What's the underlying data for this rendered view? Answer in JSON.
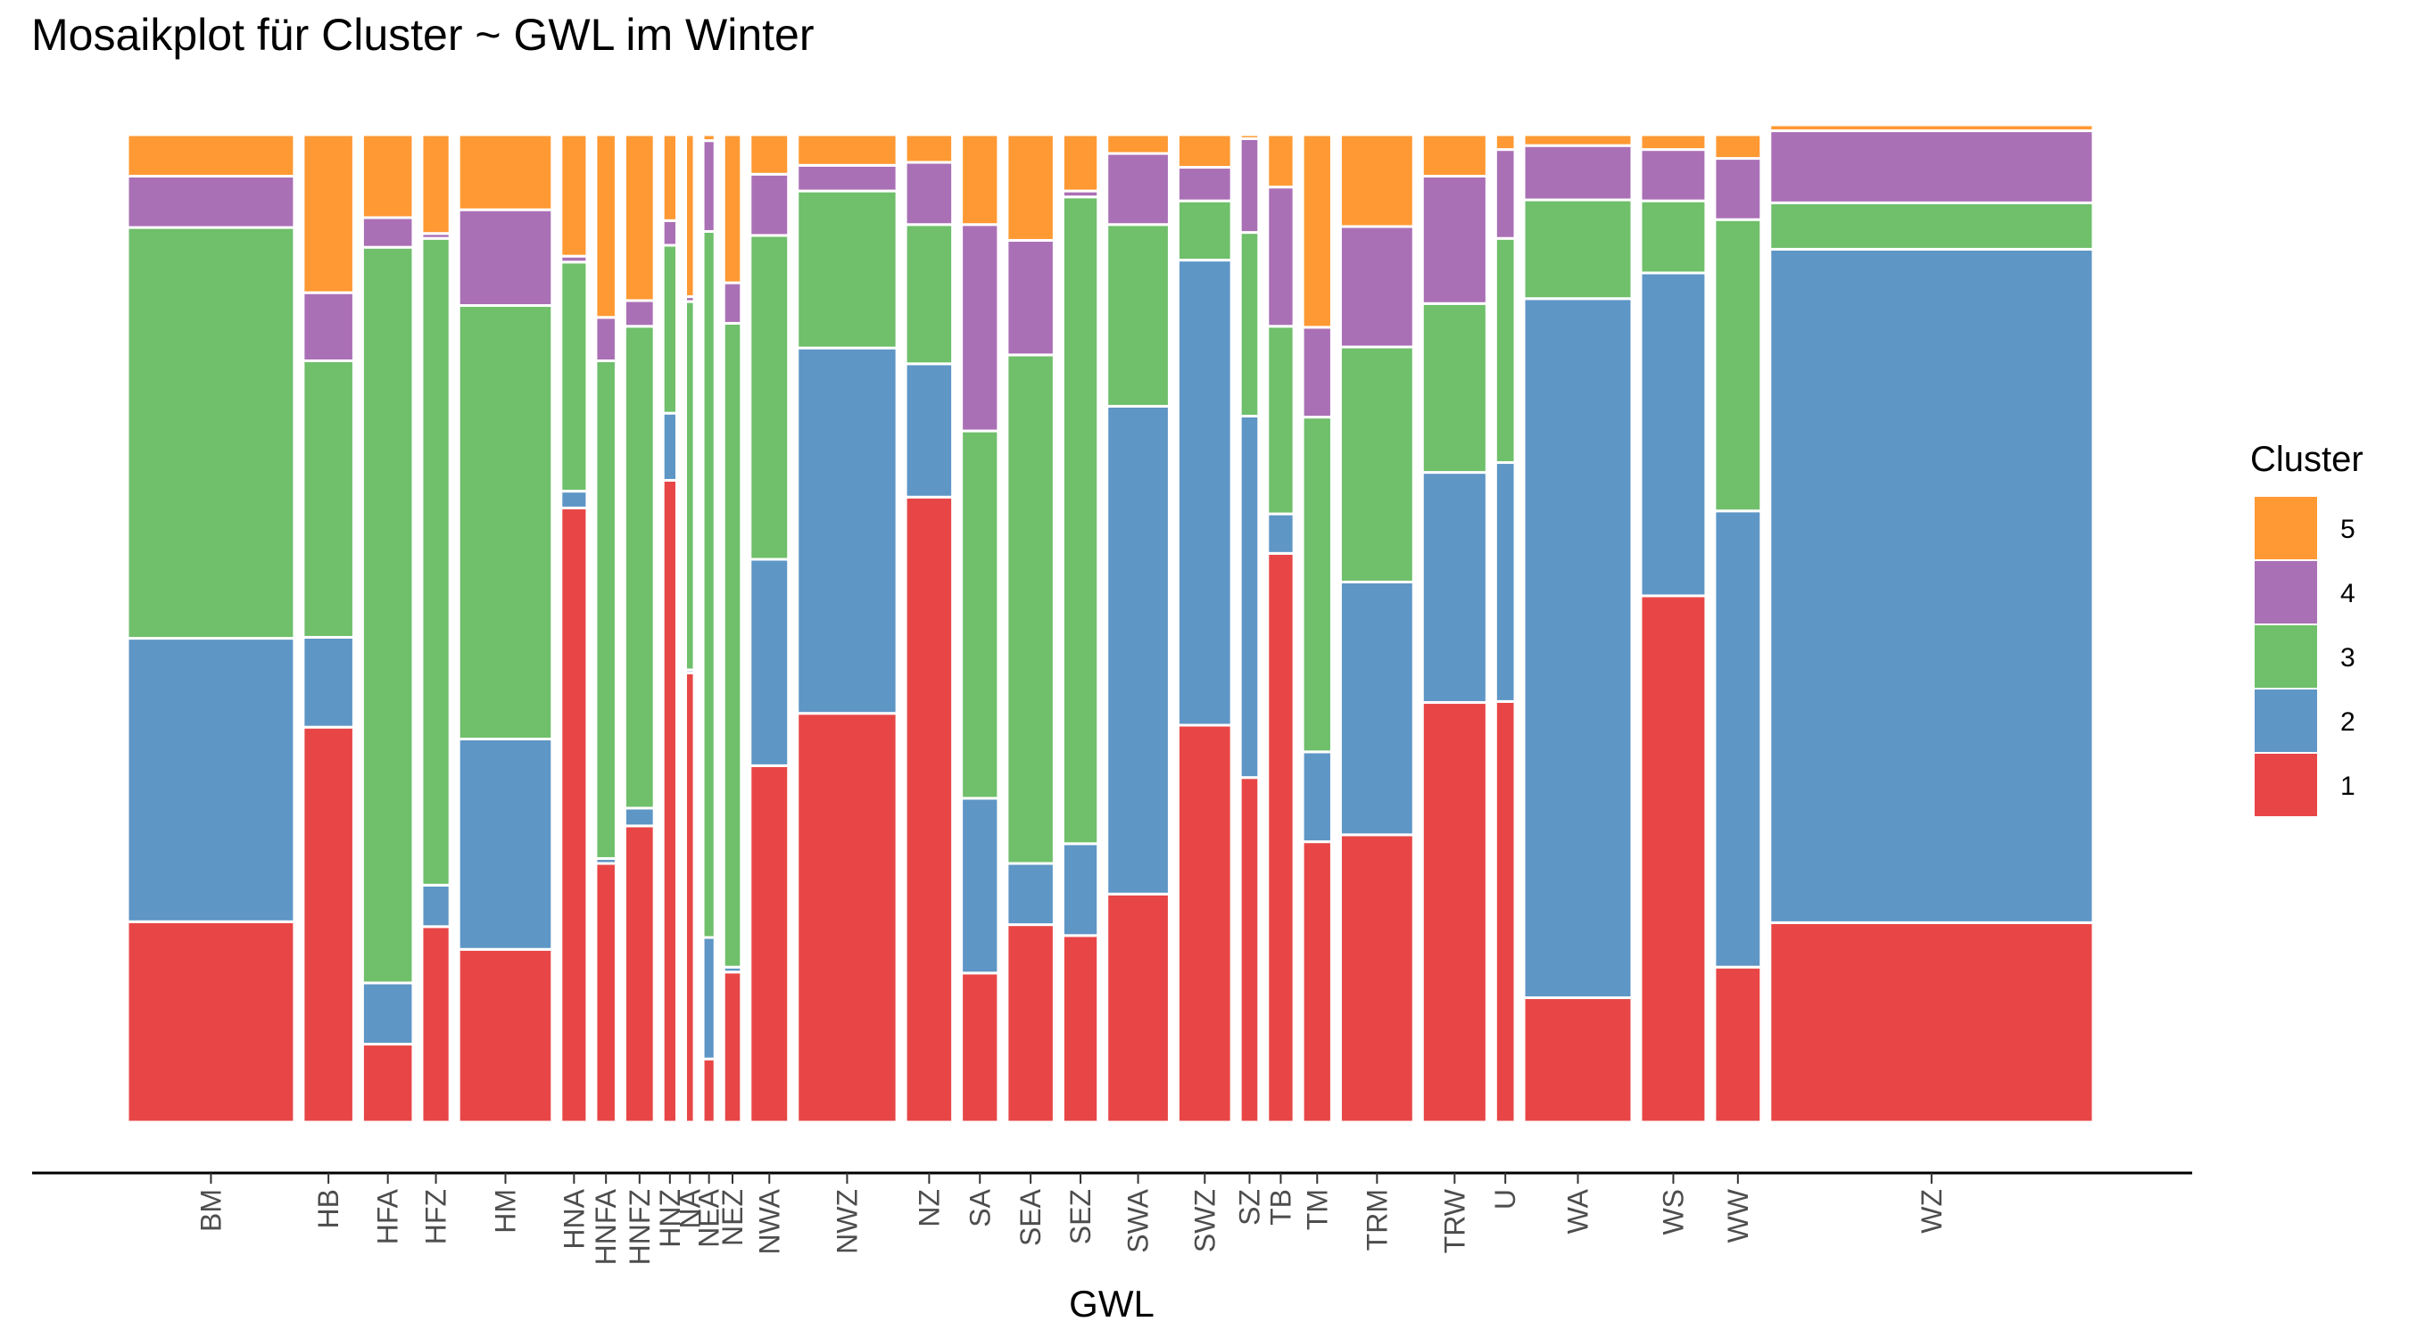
{
  "chart_data": {
    "type": "mosaic",
    "title": "Mosaikplot für Cluster ~ GWL im Winter",
    "xlabel": "GWL",
    "ylabel": "",
    "legend": {
      "title": "Cluster",
      "placement": "right",
      "entries": [
        {
          "name": "5",
          "color": "#FF9933"
        },
        {
          "name": "4",
          "color": "#AA70B6"
        },
        {
          "name": "3",
          "color": "#6FBF6B"
        },
        {
          "name": "2",
          "color": "#5E96C6"
        },
        {
          "name": "1",
          "color": "#E84646"
        }
      ]
    },
    "stack_order_bottom_to_top": [
      "1",
      "2",
      "3",
      "4",
      "5"
    ],
    "columns": [
      {
        "gwl": "BM",
        "width": 0.0879,
        "props": [
          0.203,
          0.287,
          0.416,
          0.052,
          0.042
        ]
      },
      {
        "gwl": "HB",
        "width": 0.0266,
        "props": [
          0.4,
          0.091,
          0.28,
          0.069,
          0.16
        ]
      },
      {
        "gwl": "HFA",
        "width": 0.0266,
        "props": [
          0.079,
          0.062,
          0.745,
          0.03,
          0.084
        ]
      },
      {
        "gwl": "HFZ",
        "width": 0.0147,
        "props": [
          0.198,
          0.042,
          0.655,
          0.005,
          0.1
        ]
      },
      {
        "gwl": "HM",
        "width": 0.0492,
        "props": [
          0.175,
          0.213,
          0.439,
          0.097,
          0.076
        ]
      },
      {
        "gwl": "HNA",
        "width": 0.0137,
        "props": [
          0.622,
          0.017,
          0.232,
          0.006,
          0.123
        ]
      },
      {
        "gwl": "HNFA",
        "width": 0.0106,
        "props": [
          0.262,
          0.005,
          0.504,
          0.044,
          0.185
        ]
      },
      {
        "gwl": "HNFZ",
        "width": 0.0154,
        "props": [
          0.3,
          0.018,
          0.488,
          0.026,
          0.168
        ]
      },
      {
        "gwl": "HNZ",
        "width": 0.0072,
        "props": [
          0.65,
          0.068,
          0.17,
          0.025,
          0.087
        ]
      },
      {
        "gwl": "NA",
        "width": 0.0045,
        "props": [
          0.455,
          0.003,
          0.373,
          0.005,
          0.164
        ]
      },
      {
        "gwl": "NEA",
        "width": 0.0062,
        "props": [
          0.064,
          0.123,
          0.715,
          0.092,
          0.006
        ]
      },
      {
        "gwl": "NEZ",
        "width": 0.0092,
        "props": [
          0.152,
          0.005,
          0.652,
          0.041,
          0.15
        ]
      },
      {
        "gwl": "NWA",
        "width": 0.0202,
        "props": [
          0.361,
          0.209,
          0.328,
          0.062,
          0.04
        ]
      },
      {
        "gwl": "NWZ",
        "width": 0.0524,
        "props": [
          0.414,
          0.37,
          0.159,
          0.026,
          0.031
        ]
      },
      {
        "gwl": "NZ",
        "width": 0.0247,
        "props": [
          0.633,
          0.135,
          0.141,
          0.063,
          0.028
        ]
      },
      {
        "gwl": "SA",
        "width": 0.0194,
        "props": [
          0.151,
          0.177,
          0.372,
          0.209,
          0.091
        ]
      },
      {
        "gwl": "SEA",
        "width": 0.0247,
        "props": [
          0.2,
          0.062,
          0.515,
          0.116,
          0.107
        ]
      },
      {
        "gwl": "SEZ",
        "width": 0.0185,
        "props": [
          0.189,
          0.093,
          0.655,
          0.006,
          0.057
        ]
      },
      {
        "gwl": "SWA",
        "width": 0.0328,
        "props": [
          0.231,
          0.494,
          0.184,
          0.072,
          0.019
        ]
      },
      {
        "gwl": "SWZ",
        "width": 0.0281,
        "props": [
          0.402,
          0.471,
          0.06,
          0.034,
          0.033
        ]
      },
      {
        "gwl": "SZ",
        "width": 0.0097,
        "props": [
          0.349,
          0.366,
          0.186,
          0.095,
          0.004
        ]
      },
      {
        "gwl": "TB",
        "width": 0.0138,
        "props": [
          0.576,
          0.04,
          0.19,
          0.141,
          0.053
        ]
      },
      {
        "gwl": "TM",
        "width": 0.0152,
        "props": [
          0.284,
          0.091,
          0.339,
          0.091,
          0.195
        ]
      },
      {
        "gwl": "TRM",
        "width": 0.0385,
        "props": [
          0.291,
          0.256,
          0.238,
          0.122,
          0.093
        ]
      },
      {
        "gwl": "TRW",
        "width": 0.0339,
        "props": [
          0.425,
          0.233,
          0.171,
          0.129,
          0.042
        ]
      },
      {
        "gwl": "U",
        "width": 0.0102,
        "props": [
          0.426,
          0.242,
          0.227,
          0.09,
          0.015
        ]
      },
      {
        "gwl": "WA",
        "width": 0.0569,
        "props": [
          0.126,
          0.708,
          0.1,
          0.055,
          0.011
        ]
      },
      {
        "gwl": "WS",
        "width": 0.0343,
        "props": [
          0.533,
          0.327,
          0.073,
          0.052,
          0.015
        ]
      },
      {
        "gwl": "WW",
        "width": 0.0244,
        "props": [
          0.157,
          0.462,
          0.295,
          0.062,
          0.024
        ]
      },
      {
        "gwl": "WZ",
        "width": 0.1704,
        "props": [
          0.202,
          0.682,
          0.047,
          0.073,
          0.006
        ]
      }
    ]
  }
}
